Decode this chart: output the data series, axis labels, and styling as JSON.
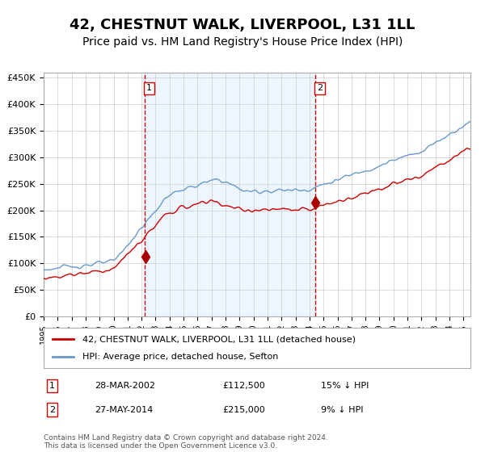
{
  "title": "42, CHESTNUT WALK, LIVERPOOL, L31 1LL",
  "subtitle": "Price paid vs. HM Land Registry's House Price Index (HPI)",
  "title_fontsize": 13,
  "subtitle_fontsize": 10,
  "ylabel_ticks": [
    "£0",
    "£50K",
    "£100K",
    "£150K",
    "£200K",
    "£250K",
    "£300K",
    "£350K",
    "£400K",
    "£450K"
  ],
  "ytick_values": [
    0,
    50000,
    100000,
    150000,
    200000,
    250000,
    300000,
    350000,
    400000,
    450000
  ],
  "ylim": [
    0,
    460000
  ],
  "xlim_start": 1995.0,
  "xlim_end": 2025.5,
  "background_color": "#ffffff",
  "plot_bg_color": "#ddeeff",
  "grid_color": "#cccccc",
  "purchase1_date": 2002.23,
  "purchase1_price": 112500,
  "purchase2_date": 2014.41,
  "purchase2_price": 215000,
  "vline_color": "#cc0000",
  "marker_color": "#aa0000",
  "shade_color": "#ddeeff",
  "legend_entry1": "42, CHESTNUT WALK, LIVERPOOL, L31 1LL (detached house)",
  "legend_entry2": "HPI: Average price, detached house, Sefton",
  "table_row1": [
    "1",
    "28-MAR-2002",
    "£112,500",
    "15% ↓ HPI"
  ],
  "table_row2": [
    "2",
    "27-MAY-2014",
    "£215,000",
    "9% ↓ HPI"
  ],
  "footer": "Contains HM Land Registry data © Crown copyright and database right 2024.\nThis data is licensed under the Open Government Licence v3.0.",
  "red_line_color": "#cc0000",
  "blue_line_color": "#6699cc"
}
